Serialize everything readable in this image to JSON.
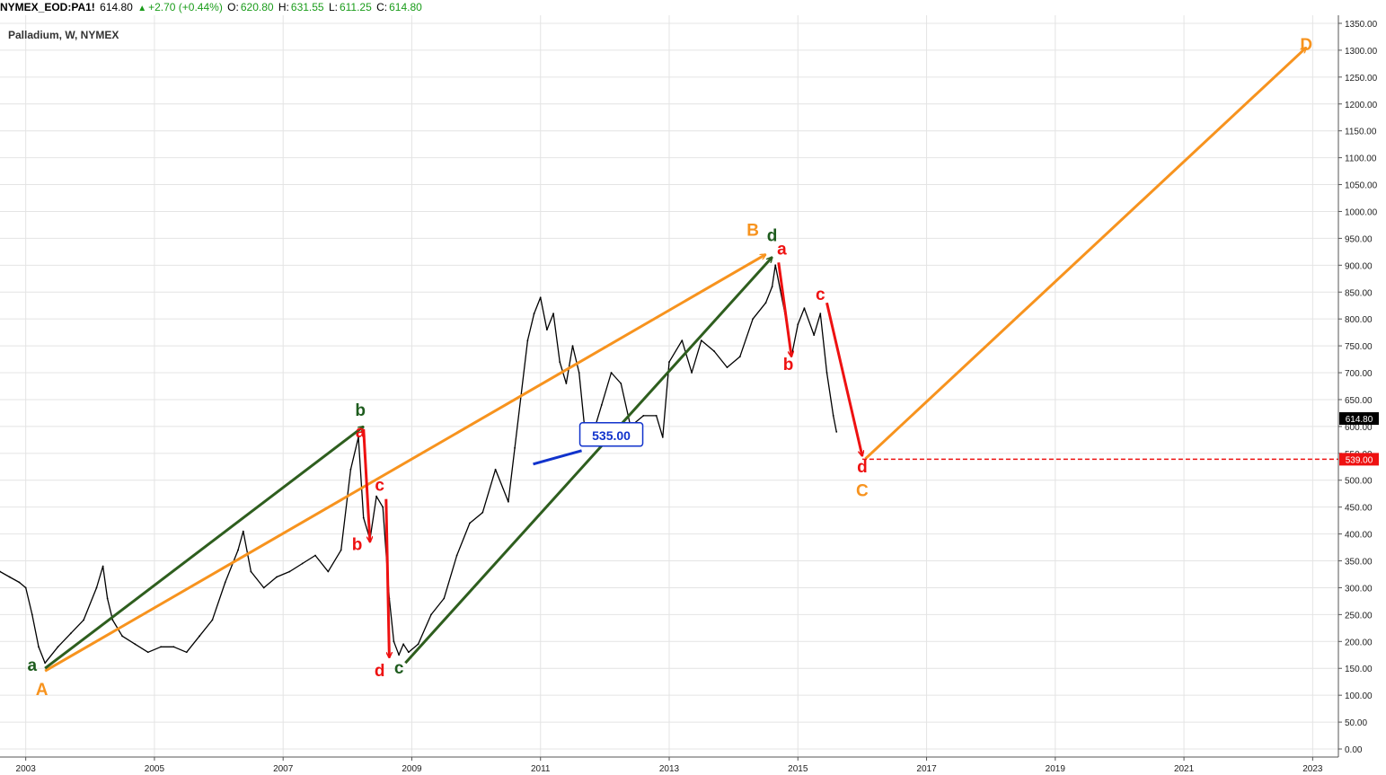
{
  "header": {
    "symbol": "NYMEX_EOD:PA1!",
    "last": "614.80",
    "change": "+2.70 (+0.44%)",
    "open_label": "O:",
    "open": "620.80",
    "high_label": "H:",
    "high": "631.55",
    "low_label": "L:",
    "low": "611.25",
    "close_label": "C:",
    "close": "614.80"
  },
  "colors": {
    "price": "#000000",
    "orange": "#f7931e",
    "green": "#2e5e1e",
    "label_green": "#1e5c1e",
    "red": "#ee1111",
    "blue": "#1133cc",
    "grid": "#e4e4e4"
  },
  "chart_data": {
    "type": "line",
    "title": "Palladium, W, NYMEX",
    "xlabel": "",
    "ylabel": "",
    "xlim": [
      2002.6,
      2023.4
    ],
    "ylim": [
      -15,
      1365
    ],
    "x_ticks": [
      "2003",
      "2005",
      "2007",
      "2009",
      "2011",
      "2013",
      "2015",
      "2017",
      "2019",
      "2021",
      "2023"
    ],
    "x_tick_values": [
      2003,
      2005,
      2007,
      2009,
      2011,
      2013,
      2015,
      2017,
      2019,
      2021,
      2023
    ],
    "y_ticks": [
      "0.00",
      "50.00",
      "100.00",
      "150.00",
      "200.00",
      "250.00",
      "300.00",
      "350.00",
      "400.00",
      "450.00",
      "500.00",
      "550.00",
      "600.00",
      "650.00",
      "700.00",
      "750.00",
      "800.00",
      "850.00",
      "900.00",
      "950.00",
      "1000.00",
      "1050.00",
      "1100.00",
      "1150.00",
      "1200.00",
      "1250.00",
      "1300.00",
      "1350.00"
    ],
    "y_tick_values": [
      0,
      50,
      100,
      150,
      200,
      250,
      300,
      350,
      400,
      450,
      500,
      550,
      600,
      650,
      700,
      750,
      800,
      850,
      900,
      950,
      1000,
      1050,
      1100,
      1150,
      1200,
      1250,
      1300,
      1350
    ],
    "grid": true,
    "series": [
      {
        "name": "",
        "x": [
          2002.6,
          2002.75,
          2002.9,
          2003.0,
          2003.1,
          2003.2,
          2003.3,
          2003.5,
          2003.7,
          2003.9,
          2004.1,
          2004.2,
          2004.27,
          2004.35,
          2004.5,
          2004.7,
          2004.9,
          2005.1,
          2005.3,
          2005.5,
          2005.7,
          2005.9,
          2006.1,
          2006.3,
          2006.38,
          2006.5,
          2006.7,
          2006.9,
          2007.1,
          2007.3,
          2007.5,
          2007.7,
          2007.9,
          2008.05,
          2008.17,
          2008.25,
          2008.35,
          2008.45,
          2008.55,
          2008.65,
          2008.72,
          2008.8,
          2008.87,
          2008.95,
          2009.1,
          2009.3,
          2009.5,
          2009.7,
          2009.9,
          2010.1,
          2010.3,
          2010.5,
          2010.6,
          2010.8,
          2010.9,
          2011.0,
          2011.1,
          2011.2,
          2011.3,
          2011.4,
          2011.5,
          2011.6,
          2011.7,
          2011.85,
          2011.95,
          2012.1,
          2012.25,
          2012.4,
          2012.6,
          2012.8,
          2012.9,
          2013.0,
          2013.2,
          2013.35,
          2013.5,
          2013.7,
          2013.9,
          2014.1,
          2014.3,
          2014.5,
          2014.6,
          2014.65,
          2014.8,
          2014.9,
          2015.0,
          2015.1,
          2015.25,
          2015.35,
          2015.45,
          2015.55,
          2015.6
        ],
        "y": [
          330,
          320,
          310,
          300,
          250,
          190,
          160,
          190,
          215,
          240,
          300,
          340,
          280,
          240,
          210,
          195,
          180,
          190,
          190,
          180,
          210,
          240,
          310,
          370,
          405,
          330,
          300,
          320,
          330,
          345,
          360,
          330,
          370,
          520,
          580,
          430,
          390,
          470,
          450,
          280,
          200,
          175,
          195,
          180,
          195,
          250,
          280,
          360,
          420,
          440,
          520,
          460,
          560,
          760,
          810,
          840,
          780,
          810,
          720,
          680,
          750,
          700,
          580,
          600,
          640,
          700,
          680,
          600,
          620,
          620,
          580,
          720,
          760,
          700,
          760,
          740,
          710,
          730,
          800,
          830,
          860,
          900,
          810,
          730,
          790,
          820,
          770,
          810,
          700,
          620,
          590
        ]
      }
    ],
    "annotations": {
      "wave_labels": [
        {
          "text": "a",
          "x": 2003.1,
          "y": 145,
          "color": "green"
        },
        {
          "text": "A",
          "x": 2003.25,
          "y": 100,
          "color": "orange"
        },
        {
          "text": "b",
          "x": 2008.2,
          "y": 620,
          "color": "green"
        },
        {
          "text": "a",
          "x": 2008.2,
          "y": 580,
          "color": "red"
        },
        {
          "text": "b",
          "x": 2008.15,
          "y": 370,
          "color": "red"
        },
        {
          "text": "c",
          "x": 2008.5,
          "y": 480,
          "color": "red"
        },
        {
          "text": "d",
          "x": 2008.5,
          "y": 135,
          "color": "red"
        },
        {
          "text": "c",
          "x": 2008.8,
          "y": 140,
          "color": "green"
        },
        {
          "text": "B",
          "x": 2014.3,
          "y": 955,
          "color": "orange"
        },
        {
          "text": "d",
          "x": 2014.6,
          "y": 945,
          "color": "green"
        },
        {
          "text": "a",
          "x": 2014.75,
          "y": 920,
          "color": "red"
        },
        {
          "text": "b",
          "x": 2014.85,
          "y": 705,
          "color": "red"
        },
        {
          "text": "c",
          "x": 2015.35,
          "y": 835,
          "color": "red"
        },
        {
          "text": "d",
          "x": 2016.0,
          "y": 515,
          "color": "red"
        },
        {
          "text": "C",
          "x": 2016.0,
          "y": 470,
          "color": "orange"
        },
        {
          "text": "D",
          "x": 2022.9,
          "y": 1300,
          "color": "orange"
        }
      ],
      "arrows": [
        {
          "color": "orange",
          "from": [
            2003.3,
            145
          ],
          "to": [
            2014.5,
            920
          ]
        },
        {
          "color": "green",
          "from": [
            2003.3,
            150
          ],
          "to": [
            2008.25,
            600
          ]
        },
        {
          "color": "green",
          "from": [
            2008.9,
            160
          ],
          "to": [
            2014.6,
            915
          ]
        },
        {
          "color": "red",
          "from": [
            2008.25,
            595
          ],
          "to": [
            2008.35,
            385
          ]
        },
        {
          "color": "red",
          "from": [
            2008.6,
            465
          ],
          "to": [
            2008.65,
            170
          ]
        },
        {
          "color": "red",
          "from": [
            2014.7,
            905
          ],
          "to": [
            2014.9,
            730
          ]
        },
        {
          "color": "red",
          "from": [
            2015.45,
            830
          ],
          "to": [
            2016.0,
            545
          ]
        },
        {
          "color": "orange",
          "from": [
            2016.05,
            540
          ],
          "to": [
            2022.9,
            1305
          ]
        }
      ],
      "callout": {
        "text": "535.00",
        "x": 2011.5,
        "y": 535,
        "color": "blue"
      },
      "support_line": {
        "y": 539,
        "x_start": 2016.0,
        "color": "red"
      },
      "price_labels": [
        {
          "text": "614.80",
          "y": 614.8,
          "bg": "#000000"
        },
        {
          "text": "539.00",
          "y": 539,
          "bg": "#ee1111"
        }
      ]
    }
  }
}
